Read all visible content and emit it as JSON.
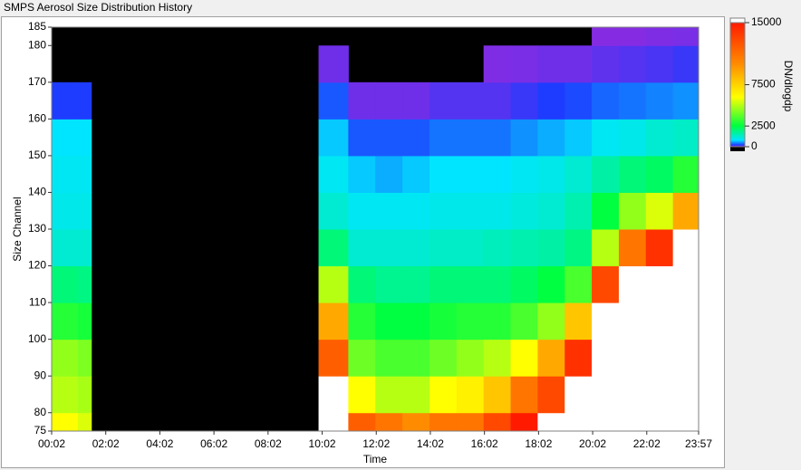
{
  "chart_data": {
    "type": "heatmap",
    "title": "SMPS Aerosol Size Distribution History",
    "xlabel": "Time",
    "ylabel": "Size Channel",
    "colorbar_label": "DN/dlogdp",
    "xlim": [
      0.0333,
      23.95
    ],
    "xticks": [
      {
        "value": 0.0333,
        "label": "00:02"
      },
      {
        "value": 2.0333,
        "label": "02:02"
      },
      {
        "value": 4.0333,
        "label": "04:02"
      },
      {
        "value": 6.0333,
        "label": "06:02"
      },
      {
        "value": 8.0333,
        "label": "08:02"
      },
      {
        "value": 10.0333,
        "label": "10:02"
      },
      {
        "value": 12.0333,
        "label": "12:02"
      },
      {
        "value": 14.0333,
        "label": "14:02"
      },
      {
        "value": 16.0333,
        "label": "16:02"
      },
      {
        "value": 18.0333,
        "label": "18:02"
      },
      {
        "value": 20.0333,
        "label": "20:02"
      },
      {
        "value": 22.0333,
        "label": "22:02"
      },
      {
        "value": 23.95,
        "label": "23:57"
      }
    ],
    "ylim": [
      75,
      185
    ],
    "yticks": [
      75,
      80,
      90,
      100,
      110,
      120,
      130,
      140,
      150,
      160,
      170,
      180,
      185
    ],
    "x_edges": [
      0.0333,
      1,
      1.5,
      9.9,
      11,
      12,
      13,
      14,
      15,
      16,
      17,
      18,
      19,
      20,
      21,
      22,
      23,
      23.95
    ],
    "y_edges": [
      75,
      80,
      90,
      100,
      110,
      120,
      130,
      140,
      150,
      160,
      170,
      180,
      185
    ],
    "zlim": [
      0,
      15000
    ],
    "zticks": [
      0,
      2500,
      7500,
      15000
    ],
    "colormap": [
      [
        0,
        "#8a2be2"
      ],
      [
        200,
        "#1e3cff"
      ],
      [
        800,
        "#00e5ff"
      ],
      [
        2500,
        "#00ff40"
      ],
      [
        6000,
        "#ffff00"
      ],
      [
        10000,
        "#ff8c00"
      ],
      [
        15000,
        "#ff1a00"
      ]
    ],
    "over_color": "#ffffff",
    "under_color": "#000000",
    "values": [
      [
        6000,
        5000,
        4500,
        3000,
        2000,
        1200,
        1000,
        900,
        800,
        200,
        null,
        null
      ],
      [
        5500,
        4800,
        4200,
        2800,
        1900,
        1200,
        1000,
        900,
        800,
        200,
        null,
        null
      ],
      [
        null,
        null,
        null,
        null,
        null,
        null,
        null,
        null,
        null,
        null,
        null,
        null
      ],
      [
        16000,
        16000,
        12000,
        9000,
        5000,
        2000,
        1200,
        900,
        700,
        300,
        50,
        null
      ],
      [
        12000,
        6000,
        4000,
        3000,
        2000,
        1200,
        900,
        700,
        300,
        50,
        null,
        null
      ],
      [
        11000,
        5000,
        3500,
        2500,
        1800,
        1200,
        900,
        600,
        300,
        50,
        null,
        null
      ],
      [
        10000,
        5000,
        3500,
        2500,
        1800,
        1200,
        900,
        700,
        300,
        50,
        null,
        null
      ],
      [
        11000,
        6000,
        4000,
        2800,
        2000,
        1300,
        1000,
        800,
        400,
        100,
        null,
        null
      ],
      [
        11000,
        6500,
        4500,
        3000,
        2000,
        1300,
        1000,
        800,
        400,
        100,
        null,
        null
      ],
      [
        13000,
        8000,
        5000,
        3000,
        2000,
        1400,
        1000,
        800,
        400,
        100,
        20,
        null
      ],
      [
        15000,
        11000,
        6000,
        3500,
        2200,
        1500,
        1100,
        900,
        500,
        150,
        30,
        null
      ],
      [
        16000,
        13000,
        9000,
        4500,
        2500,
        1600,
        1200,
        1000,
        600,
        200,
        50,
        null
      ],
      [
        16000,
        16000,
        14000,
        8000,
        3500,
        1900,
        1500,
        1200,
        700,
        250,
        50,
        null
      ],
      [
        16000,
        16000,
        16000,
        16000,
        13000,
        5000,
        2500,
        1600,
        900,
        350,
        80,
        10
      ],
      [
        16000,
        16000,
        16000,
        16000,
        16000,
        11000,
        4500,
        2000,
        1000,
        400,
        100,
        10
      ],
      [
        16000,
        16000,
        16000,
        16000,
        16000,
        14000,
        5500,
        2200,
        1200,
        450,
        120,
        20
      ],
      [
        16000,
        16000,
        16000,
        16000,
        16000,
        16000,
        9000,
        3000,
        1300,
        500,
        150,
        30
      ]
    ]
  }
}
